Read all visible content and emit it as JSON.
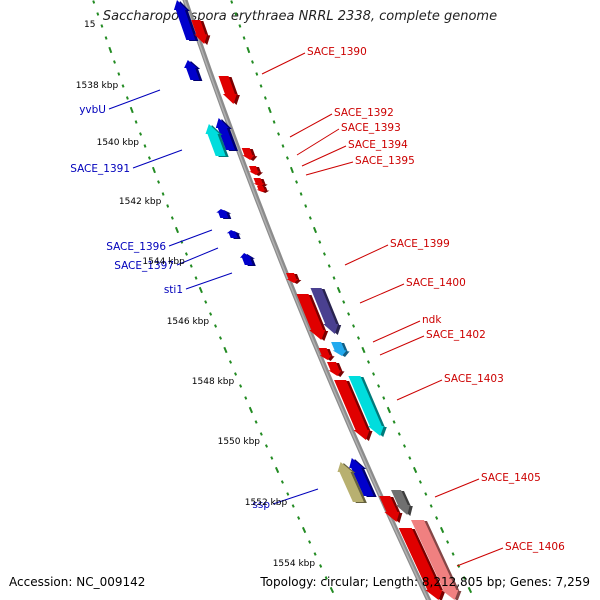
{
  "title": "Saccharopolyspora erythraea NRRL 2338, complete genome",
  "footer": {
    "accession": "Accession: NC_009142",
    "topology": "Topology: circular; Length: 8,212,805 bp; Genes: 7,259"
  },
  "colors": {
    "forward_cds": "#e00000",
    "reverse_cds": "#0000cc",
    "cyan_cds": "#00dddd",
    "purple_cds": "#4a4090",
    "olive_cds": "#b8b070",
    "gray_cds": "#707070",
    "pink_cds": "#f08080",
    "tick": "#228b22",
    "backbone": "#8c8c8c",
    "label_forward": "#cc0000",
    "label_reverse": "#0000bb"
  },
  "axis_labels": [
    "1538 kbp",
    "1540 kbp",
    "1542 kbp",
    "1544 kbp",
    "1546 kbp",
    "1548 kbp",
    "1550 kbp",
    "1552 kbp",
    "1554 kbp"
  ],
  "axis_label_partial": "15",
  "labels_forward": [
    "SACE_1390",
    "SACE_1392",
    "SACE_1393",
    "SACE_1394",
    "SACE_1395",
    "SACE_1399",
    "SACE_1400",
    "ndk",
    "SACE_1402",
    "SACE_1403",
    "SACE_1405",
    "SACE_1406"
  ],
  "labels_reverse": [
    "yvbU",
    "SACE_1391",
    "SACE_1396",
    "SACE_1397",
    "sti1",
    "ssp"
  ]
}
